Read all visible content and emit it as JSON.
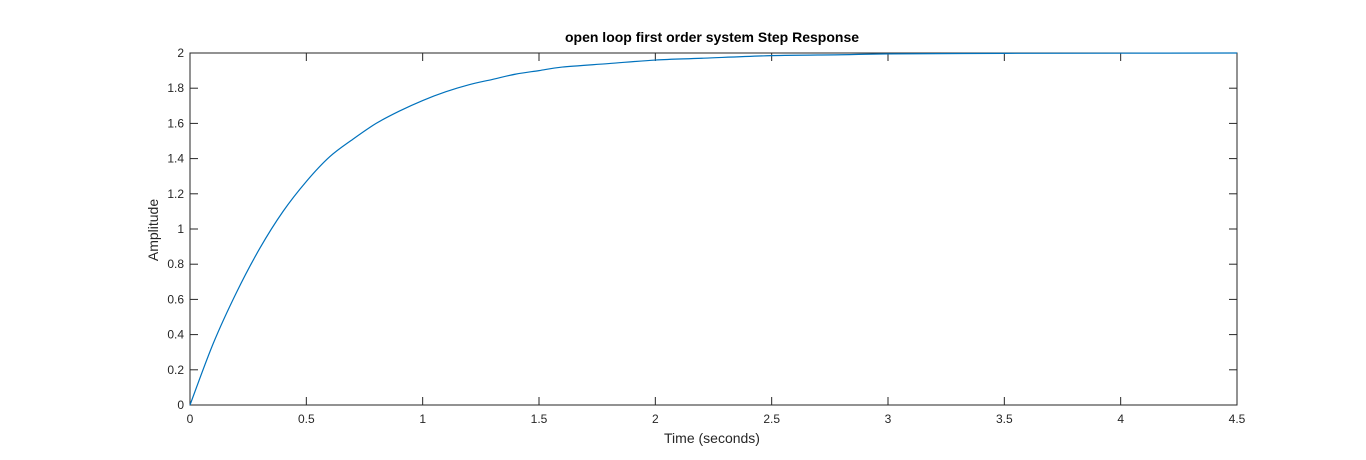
{
  "chart_data": {
    "type": "line",
    "title": "open loop  first order system Step Response",
    "xlabel": "Time (seconds)",
    "ylabel": "Amplitude",
    "xlim": [
      0,
      4.5
    ],
    "ylim": [
      0,
      2
    ],
    "x_ticks": [
      0,
      0.5,
      1,
      1.5,
      2,
      2.5,
      3,
      3.5,
      4,
      4.5
    ],
    "x_tick_labels": [
      "0",
      "0.5",
      "1",
      "1.5",
      "2",
      "2.5",
      "3",
      "3.5",
      "4",
      "4.5"
    ],
    "y_ticks": [
      0,
      0.2,
      0.4,
      0.6,
      0.8,
      1,
      1.2,
      1.4,
      1.6,
      1.8,
      2
    ],
    "y_tick_labels": [
      "0",
      "0.2",
      "0.4",
      "0.6",
      "0.8",
      "1",
      "1.2",
      "1.4",
      "1.6",
      "1.8",
      "2"
    ],
    "grid": false,
    "reference_line": {
      "y": 2,
      "style": "dotted"
    },
    "series": [
      {
        "color": "#0072BD",
        "x": [
          0,
          0.1,
          0.2,
          0.3,
          0.4,
          0.5,
          0.6,
          0.7,
          0.8,
          0.9,
          1.0,
          1.1,
          1.2,
          1.3,
          1.4,
          1.5,
          1.6,
          1.8,
          2.0,
          2.2,
          2.5,
          2.8,
          3.0,
          3.5,
          4.0,
          4.5
        ],
        "y": [
          0,
          0.35,
          0.64,
          0.89,
          1.1,
          1.27,
          1.41,
          1.51,
          1.6,
          1.67,
          1.73,
          1.78,
          1.82,
          1.85,
          1.88,
          1.9,
          1.92,
          1.94,
          1.96,
          1.97,
          1.985,
          1.99,
          1.995,
          1.998,
          1.999,
          2.0
        ]
      }
    ]
  }
}
